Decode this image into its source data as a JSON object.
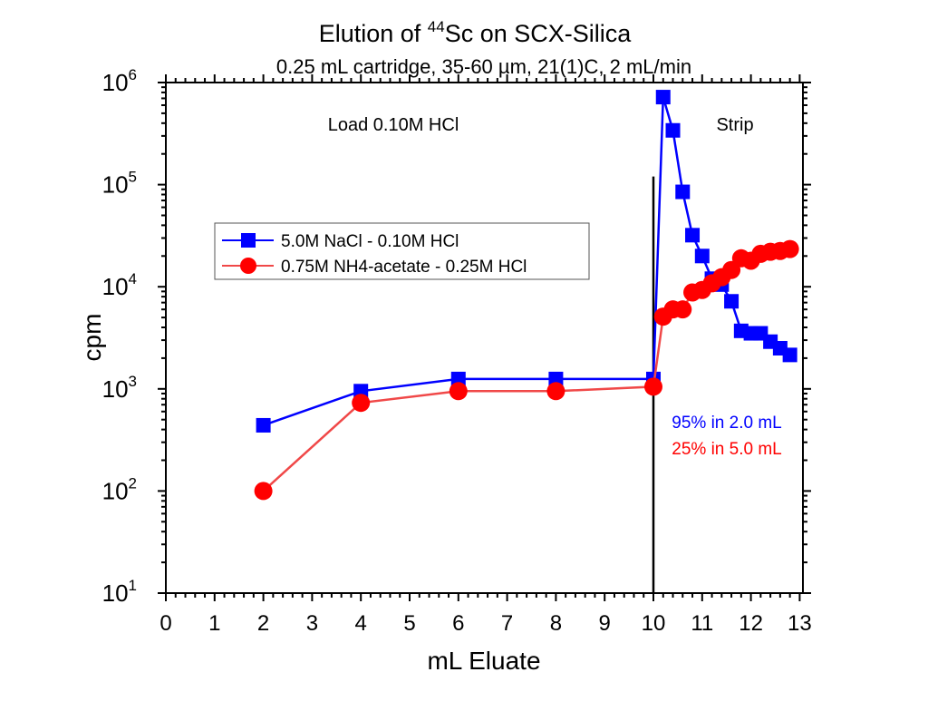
{
  "chart_data": {
    "type": "line",
    "title": "Elution of ",
    "title_superscript": "44",
    "title_rest": "Sc on SCX-Silica",
    "subtitle": "0.25 mL cartridge, 35-60 µm, 21(1)C, 2 mL/min",
    "xlabel": "mL Eluate",
    "ylabel": "cpm",
    "xlim": [
      0,
      13
    ],
    "ylim": [
      10,
      1000000
    ],
    "yscale": "log",
    "x_ticks": [
      "0",
      "1",
      "2",
      "3",
      "4",
      "5",
      "6",
      "7",
      "8",
      "9",
      "10",
      "11",
      "12",
      "13"
    ],
    "y_ticks": [
      {
        "base": "10",
        "exp": "1"
      },
      {
        "base": "10",
        "exp": "2"
      },
      {
        "base": "10",
        "exp": "3"
      },
      {
        "base": "10",
        "exp": "4"
      },
      {
        "base": "10",
        "exp": "5"
      },
      {
        "base": "10",
        "exp": "6"
      }
    ],
    "grid": false,
    "legend_position": "upper-left-center",
    "series": [
      {
        "name": "5.0M NaCl - 0.10M HCl",
        "color": "#0000ff",
        "marker": "square",
        "x": [
          2,
          4,
          6,
          8,
          10,
          10.2,
          10.4,
          10.6,
          10.8,
          11.0,
          11.2,
          11.4,
          11.6,
          11.8,
          12.0,
          12.2,
          12.4,
          12.6,
          12.8
        ],
        "y": [
          440,
          950,
          1250,
          1250,
          1250,
          720000,
          340000,
          85000,
          32000,
          20000,
          12000,
          10500,
          7200,
          3700,
          3500,
          3500,
          2900,
          2500,
          2150
        ]
      },
      {
        "name": "0.75M NH4-acetate - 0.25M HCl",
        "color": "#ff0000",
        "line_color": "#f04848",
        "marker": "circle",
        "x": [
          2,
          4,
          6,
          8,
          10,
          10.2,
          10.4,
          10.6,
          10.8,
          11.0,
          11.2,
          11.4,
          11.6,
          11.8,
          12.0,
          12.2,
          12.4,
          12.6,
          12.8
        ],
        "y": [
          100,
          730,
          950,
          950,
          1050,
          5100,
          6000,
          6000,
          8800,
          9300,
          10800,
          12400,
          14600,
          19000,
          18000,
          21000,
          22000,
          22400,
          23400
        ]
      }
    ],
    "annotations": [
      {
        "text": "Load 0.10M HCl",
        "color": "#000000"
      },
      {
        "text": "Strip",
        "color": "#000000"
      },
      {
        "text": "95% in 2.0 mL",
        "color": "#0000ff"
      },
      {
        "text": "25% in 5.0 mL",
        "color": "#ff0000"
      }
    ],
    "divider": {
      "x": 10,
      "y_top": 120000
    }
  }
}
